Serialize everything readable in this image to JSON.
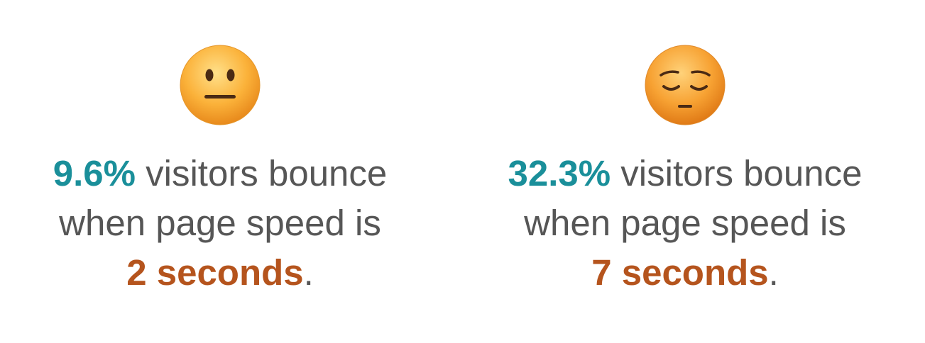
{
  "left": {
    "percent": "9.6%",
    "line1_rest": " visitors bounce",
    "line2": "when page speed is",
    "seconds": "2 seconds",
    "period": ".",
    "emoji_icon": "neutral-face-icon"
  },
  "right": {
    "percent": "32.3%",
    "line1_rest": " visitors bounce",
    "line2": "when page speed is",
    "seconds": "7 seconds",
    "period": ".",
    "emoji_icon": "pensive-face-icon"
  },
  "colors": {
    "percent": "#1a8f9a",
    "seconds": "#b5541d",
    "text": "#565656"
  }
}
